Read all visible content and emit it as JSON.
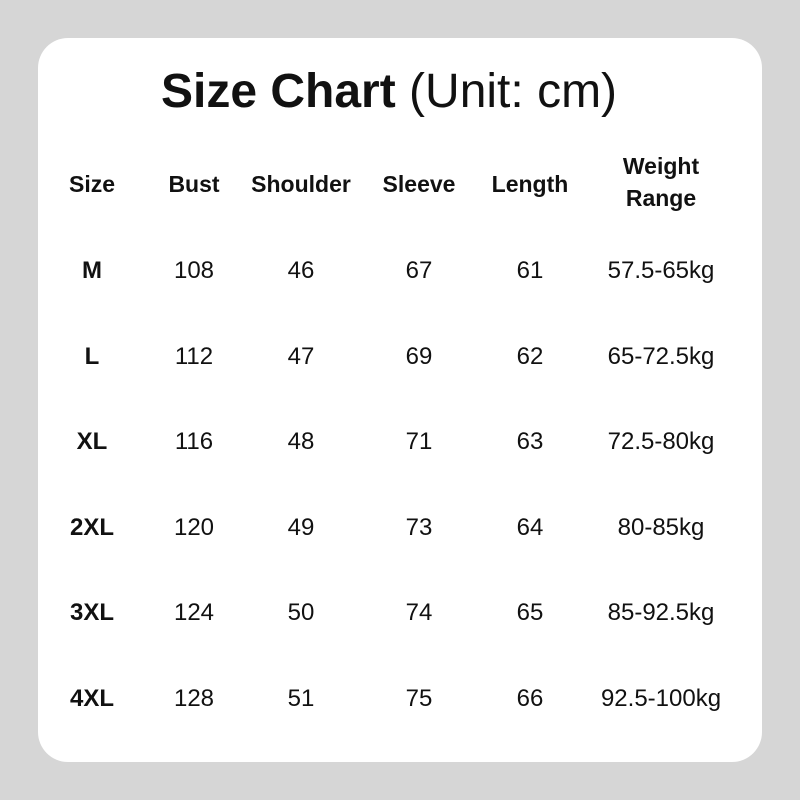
{
  "title": {
    "bold": "Size Chart",
    "unit": "(Unit: cm)"
  },
  "headers": [
    "Size",
    "Bust",
    "Shoulder",
    "Sleeve",
    "Length",
    "Weight\nRange"
  ],
  "rows": [
    [
      "M",
      "108",
      "46",
      "67",
      "61",
      "57.5-65kg"
    ],
    [
      "L",
      "112",
      "47",
      "69",
      "62",
      "65-72.5kg"
    ],
    [
      "XL",
      "116",
      "48",
      "71",
      "63",
      "72.5-80kg"
    ],
    [
      "2XL",
      "120",
      "49",
      "73",
      "64",
      "80-85kg"
    ],
    [
      "3XL",
      "124",
      "50",
      "74",
      "65",
      "85-92.5kg"
    ],
    [
      "4XL",
      "128",
      "51",
      "75",
      "66",
      "92.5-100kg"
    ]
  ]
}
